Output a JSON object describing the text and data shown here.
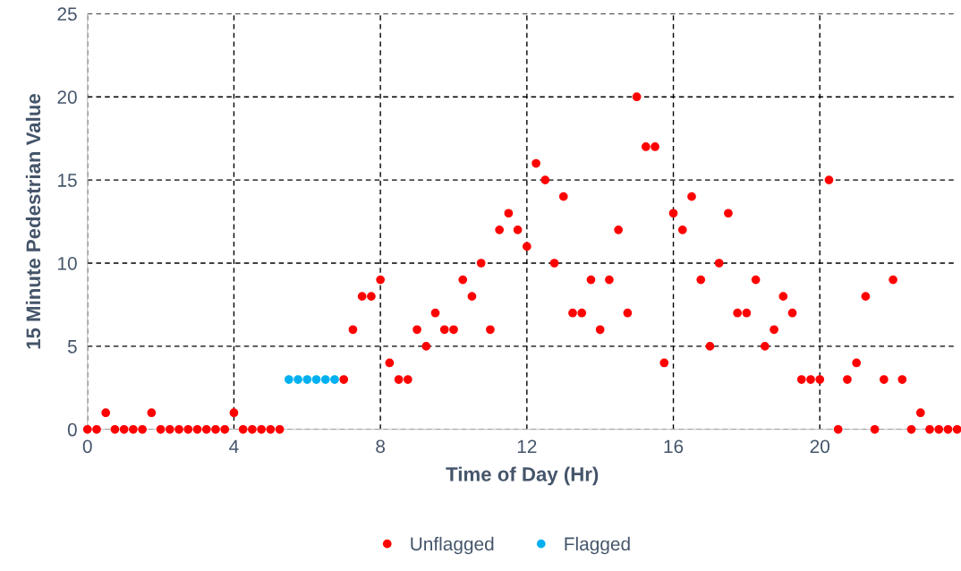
{
  "chart_data": {
    "type": "scatter",
    "xlabel": "Time of Day (Hr)",
    "ylabel": "15 Minute Pedestrian Value",
    "xlim": [
      0,
      23.75
    ],
    "xticks": [
      0,
      4,
      8,
      12,
      16,
      20
    ],
    "ylim": [
      0,
      25
    ],
    "yticks": [
      0,
      5,
      10,
      15,
      20,
      25
    ],
    "grid": true,
    "legend": "bottom",
    "marker": "circle",
    "series": [
      {
        "name": "Unflagged",
        "color": "#ff0000",
        "x": [
          0,
          0.25,
          0.5,
          0.75,
          1,
          1.25,
          1.5,
          1.75,
          2,
          2.25,
          2.5,
          2.75,
          3,
          3.25,
          3.5,
          3.75,
          4,
          4.25,
          4.5,
          4.75,
          5,
          5.25,
          7,
          7.25,
          7.5,
          7.75,
          8,
          8.25,
          8.5,
          8.75,
          9,
          9.25,
          9.5,
          9.75,
          10,
          10.25,
          10.5,
          10.75,
          11,
          11.25,
          11.5,
          11.75,
          12,
          12.25,
          12.5,
          12.75,
          13,
          13.25,
          13.5,
          13.75,
          14,
          14.25,
          14.5,
          14.75,
          15,
          15.25,
          15.5,
          15.75,
          16,
          16.25,
          16.5,
          16.75,
          17,
          17.25,
          17.5,
          17.75,
          18,
          18.25,
          18.5,
          18.75,
          19,
          19.25,
          19.5,
          19.75,
          20,
          20.25,
          20.5,
          20.75,
          21,
          21.25,
          21.5,
          21.75,
          22,
          22.25,
          22.5,
          22.75,
          23,
          23.25,
          23.5,
          23.75
        ],
        "values": [
          0,
          0,
          1,
          0,
          0,
          0,
          0,
          1,
          0,
          0,
          0,
          0,
          0,
          0,
          0,
          0,
          1,
          0,
          0,
          0,
          0,
          0,
          3,
          6,
          8,
          8,
          9,
          4,
          3,
          3,
          6,
          5,
          7,
          6,
          6,
          9,
          8,
          10,
          6,
          12,
          13,
          12,
          11,
          16,
          15,
          10,
          14,
          7,
          7,
          9,
          6,
          9,
          12,
          7,
          20,
          17,
          17,
          4,
          13,
          12,
          14,
          9,
          5,
          10,
          13,
          7,
          7,
          9,
          5,
          6,
          8,
          7,
          3,
          3,
          3,
          15,
          0,
          3,
          4,
          8,
          0,
          3,
          9,
          3,
          0,
          1,
          0,
          0,
          0,
          0
        ]
      },
      {
        "name": "Flagged",
        "color": "#00b0f0",
        "x": [
          5.5,
          5.75,
          6,
          6.25,
          6.5,
          6.75
        ],
        "values": [
          3,
          3,
          3,
          3,
          3,
          3
        ]
      }
    ]
  }
}
